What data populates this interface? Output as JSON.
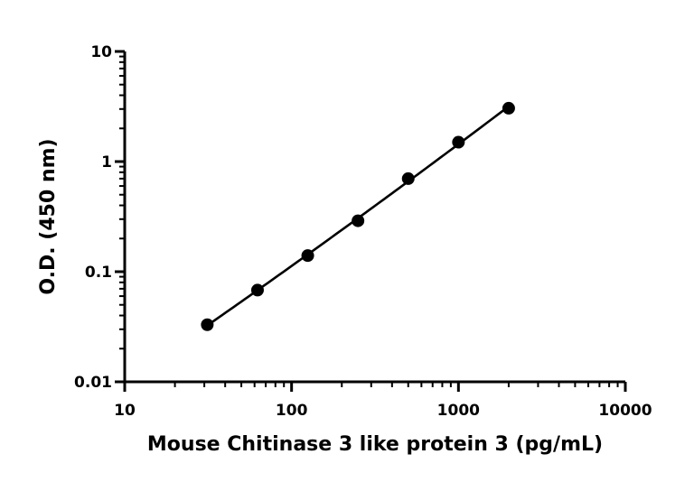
{
  "chart_data": {
    "type": "scatter",
    "title": "",
    "xlabel": "Mouse Chitinase 3 like protein 3 (pg/mL)",
    "ylabel": "O.D. (450 nm)",
    "x_scale": "log",
    "y_scale": "log",
    "xlim": [
      10,
      10000
    ],
    "ylim": [
      0.01,
      10
    ],
    "x_ticks": [
      "10",
      "100",
      "1000",
      "10000"
    ],
    "y_ticks": [
      "10",
      "1",
      "0.1",
      "0.01"
    ],
    "grid": false,
    "series": [
      {
        "x": [
          31.25,
          62.5,
          125,
          250,
          500,
          1000,
          2000
        ],
        "y": [
          0.033,
          0.068,
          0.14,
          0.29,
          0.7,
          1.5,
          3.05
        ],
        "color": "#000000",
        "marker": "circle",
        "fit_line": true
      }
    ]
  }
}
